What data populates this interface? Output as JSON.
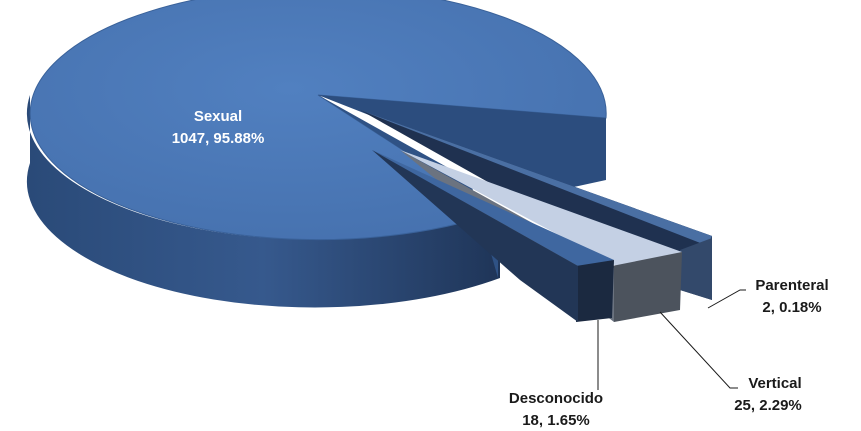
{
  "chart_data": {
    "type": "pie",
    "style": "3d-exploded",
    "slices": [
      {
        "name": "Sexual",
        "value": 1047,
        "percent": "95.88%",
        "label_line1": "Sexual",
        "label_line2": "1047, 95.88%",
        "color": "#4873b0",
        "side_color": "#2b4c7c"
      },
      {
        "name": "Parenteral",
        "value": 2,
        "percent": "0.18%",
        "label_line1": "Parenteral",
        "label_line2": "2, 0.18%",
        "color": "#2e4f7a",
        "side_color": "#22334d"
      },
      {
        "name": "Vertical",
        "value": 25,
        "percent": "2.29%",
        "label_line1": "Vertical",
        "label_line2": "25, 2.29%",
        "color": "#c3cfe2",
        "side_color": "#4d5561"
      },
      {
        "name": "Desconocido",
        "value": 18,
        "percent": "1.65%",
        "label_line1": "Desconocido",
        "label_line2": "18, 1.65%",
        "color": "#3c6297",
        "side_color": "#1d2a3d"
      }
    ],
    "title": "",
    "legend": "none"
  }
}
